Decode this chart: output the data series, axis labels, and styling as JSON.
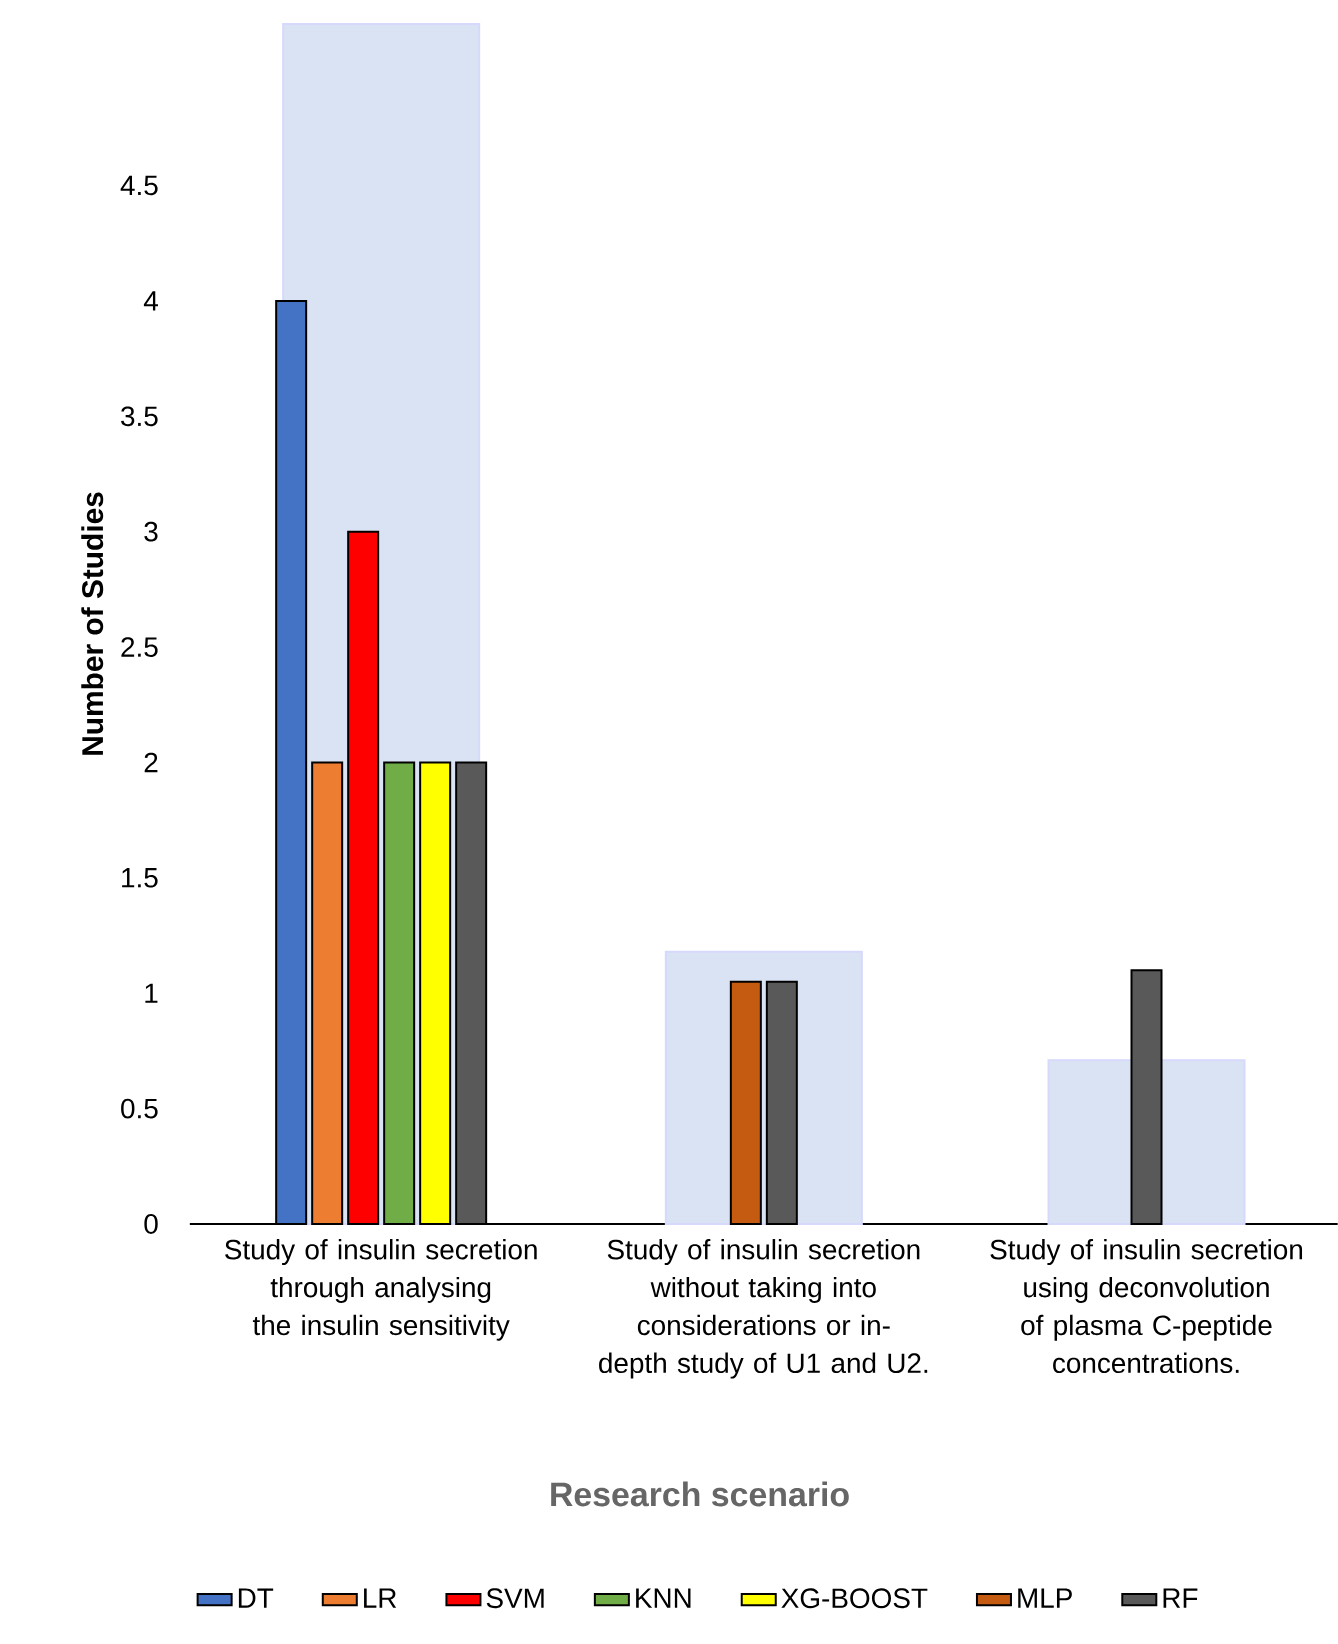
{
  "chart_data": {
    "type": "bar",
    "xlabel": "Research scenario",
    "ylabel": "Number of Studies",
    "categories": [
      "Study of insulin secretion through analysing the insulin sensitivity",
      "Study of insulin secretion without taking into considerations or in-depth study of U1 and U2.",
      "Study of insulin secretion using deconvolution of plasma C-peptide concentrations."
    ],
    "series": [
      {
        "color": "#dae3f3",
        "values": [
          5.2,
          1.18,
          0.71
        ]
      },
      {
        "name": "DT",
        "color": "#4472c4",
        "values": [
          4,
          null,
          null
        ]
      },
      {
        "name": "LR",
        "color": "#ed7d31",
        "values": [
          2,
          null,
          null
        ]
      },
      {
        "name": "SVM",
        "color": "#ff0000",
        "values": [
          3,
          null,
          null
        ]
      },
      {
        "name": "KNN",
        "color": "#70ad47",
        "values": [
          2,
          null,
          null
        ]
      },
      {
        "name": "XG-BOOST",
        "color": "#ffff00",
        "values": [
          2,
          null,
          null
        ]
      },
      {
        "name": "MLP",
        "color": "#c55a11",
        "values": [
          null,
          1.05,
          null
        ]
      },
      {
        "name": "RF",
        "color": "#595959",
        "values": [
          2,
          1.05,
          1.1
        ]
      }
    ],
    "ylim": [
      0,
      5.2
    ],
    "yticks": [
      0,
      0.5,
      1,
      1.5,
      2,
      2.5,
      3,
      3.5,
      4,
      4.5
    ],
    "legend": "bottom"
  }
}
